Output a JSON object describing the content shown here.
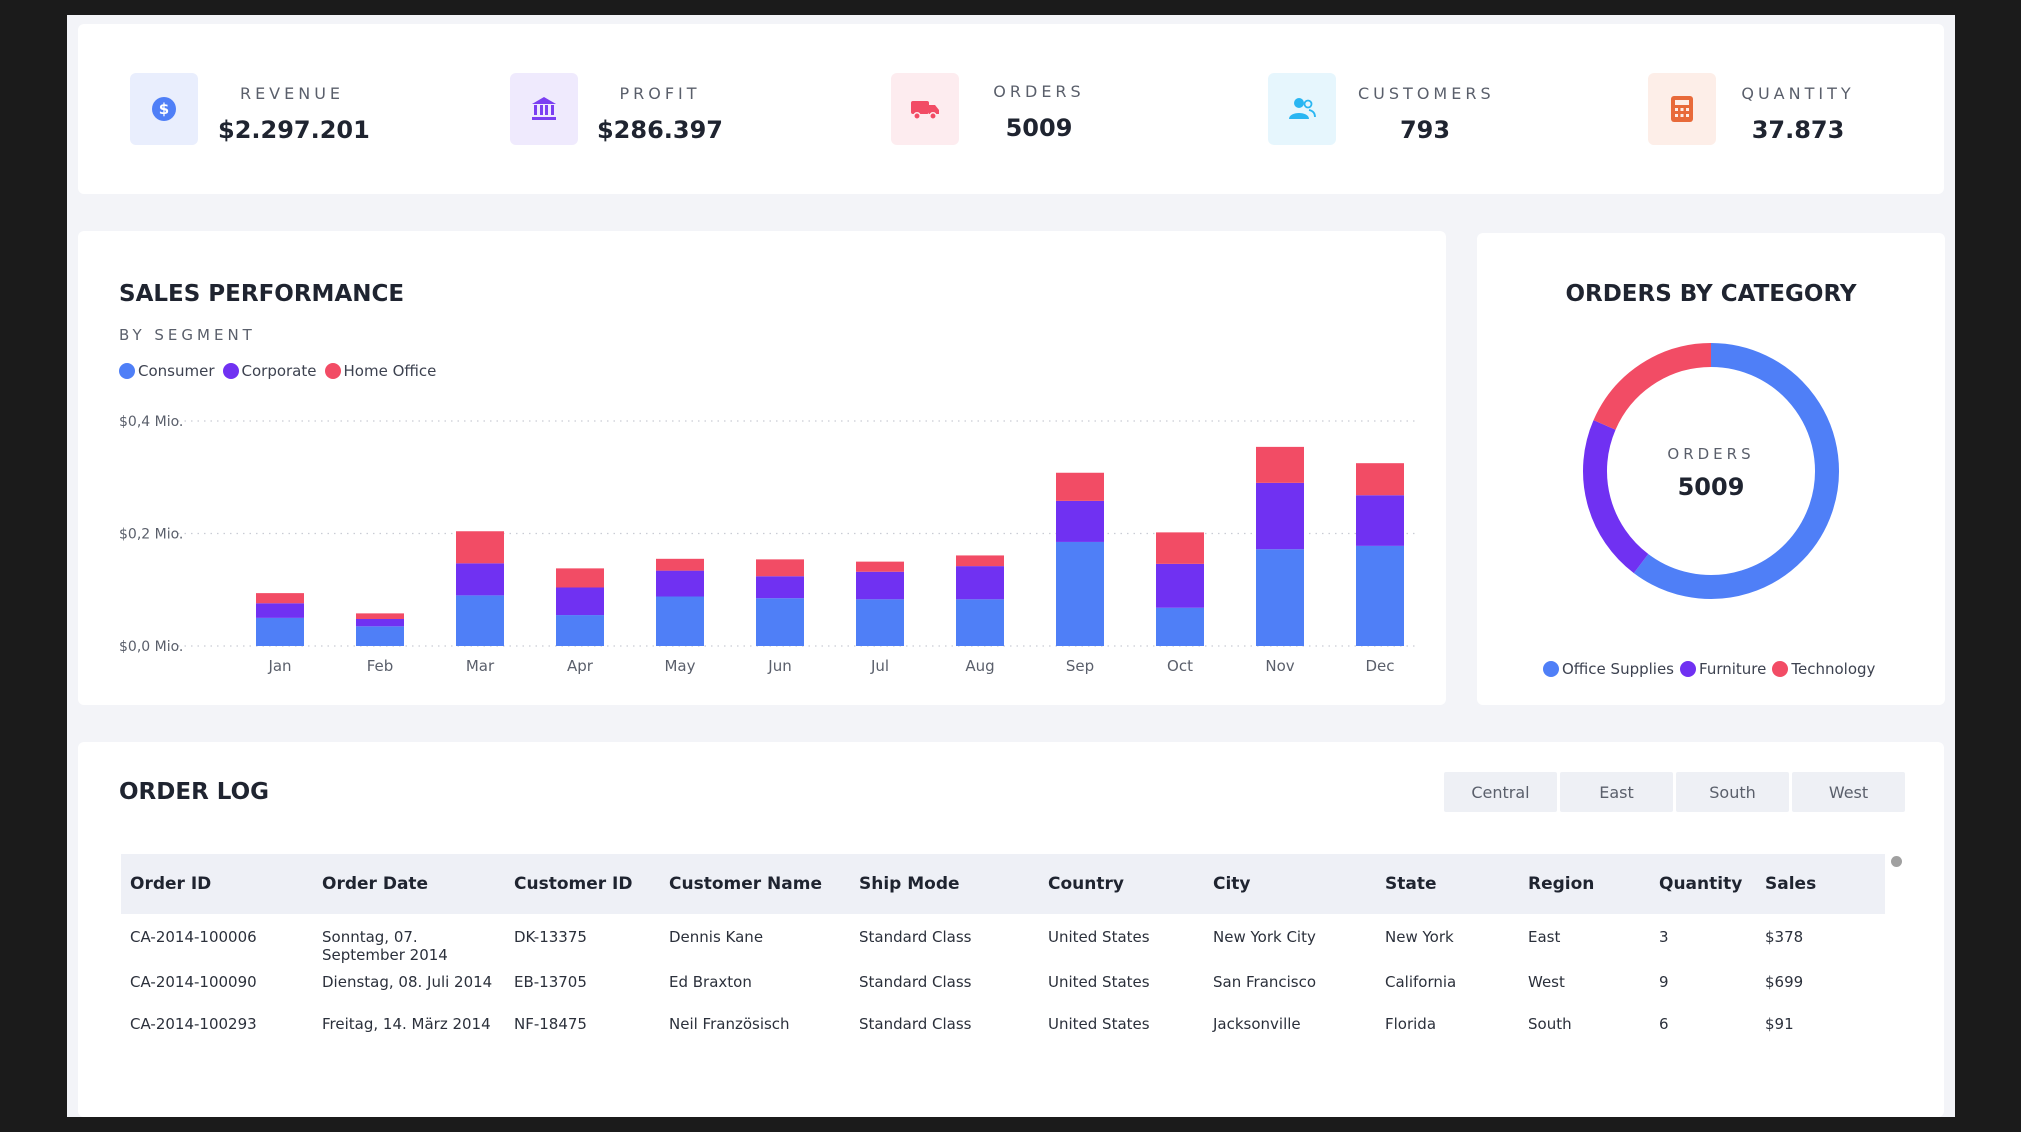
{
  "kpis": [
    {
      "label": "REVENUE",
      "value": "$2.297.201",
      "icon": "dollar-coin-icon",
      "icon_bg": "#e9eefd",
      "icon_color": "#4f7ff7"
    },
    {
      "label": "PROFIT",
      "value": "$286.397",
      "icon": "bank-icon",
      "icon_bg": "#efeafd",
      "icon_color": "#7b3ff2"
    },
    {
      "label": "ORDERS",
      "value": "5009",
      "icon": "truck-icon",
      "icon_bg": "#fdecef",
      "icon_color": "#f24c65"
    },
    {
      "label": "CUSTOMERS",
      "value": "793",
      "icon": "users-icon",
      "icon_bg": "#e6f6fd",
      "icon_color": "#29b6f2"
    },
    {
      "label": "QUANTITY",
      "value": "37.873",
      "icon": "calculator-icon",
      "icon_bg": "#fdeee8",
      "icon_color": "#e86a3a"
    }
  ],
  "sales": {
    "title": "SALES PERFORMANCE",
    "subtitle": "BY SEGMENT"
  },
  "orders_by_category": {
    "title": "ORDERS BY CATEGORY",
    "center_label": "ORDERS",
    "center_value": "5009"
  },
  "chart_data": [
    {
      "type": "bar",
      "stacked": true,
      "categories": [
        "Jan",
        "Feb",
        "Mar",
        "Apr",
        "May",
        "Jun",
        "Jul",
        "Aug",
        "Sep",
        "Oct",
        "Nov",
        "Dec"
      ],
      "series": [
        {
          "name": "Consumer",
          "color": "#4f7ff7",
          "values": [
            0.05,
            0.035,
            0.09,
            0.055,
            0.088,
            0.085,
            0.083,
            0.083,
            0.185,
            0.068,
            0.172,
            0.178
          ]
        },
        {
          "name": "Corporate",
          "color": "#7031f2",
          "values": [
            0.026,
            0.013,
            0.057,
            0.049,
            0.046,
            0.039,
            0.049,
            0.059,
            0.073,
            0.078,
            0.118,
            0.09
          ]
        },
        {
          "name": "Home Office",
          "color": "#f24c65",
          "values": [
            0.018,
            0.01,
            0.057,
            0.034,
            0.021,
            0.03,
            0.018,
            0.019,
            0.05,
            0.056,
            0.064,
            0.057
          ]
        }
      ],
      "yticks": [
        "$0,0 Mio.",
        "$0,2 Mio.",
        "$0,4 Mio."
      ],
      "ylim": [
        0,
        0.4
      ],
      "legend": "top-left",
      "grid": true
    },
    {
      "type": "pie",
      "donut": true,
      "labels": [
        "Office Supplies",
        "Furniture",
        "Technology"
      ],
      "colors": [
        "#4f7ff7",
        "#7031f2",
        "#f24c65"
      ],
      "values": [
        60.3,
        21.2,
        18.5
      ],
      "legend": "bottom"
    }
  ],
  "order_log": {
    "title": "ORDER LOG",
    "region_tabs": [
      "Central",
      "East",
      "South",
      "West"
    ],
    "columns": [
      "Order ID",
      "Order Date",
      "Customer ID",
      "Customer Name",
      "Ship Mode",
      "Country",
      "City",
      "State",
      "Region",
      "Quantity",
      "Sales"
    ],
    "rows": [
      [
        "CA-2014-100006",
        "Sonntag, 07. September 2014",
        "DK-13375",
        "Dennis Kane",
        "Standard Class",
        "United States",
        "New York City",
        "New York",
        "East",
        "3",
        "$378"
      ],
      [
        "CA-2014-100090",
        "Dienstag, 08. Juli 2014",
        "EB-13705",
        "Ed Braxton",
        "Standard Class",
        "United States",
        "San Francisco",
        "California",
        "West",
        "9",
        "$699"
      ],
      [
        "CA-2014-100293",
        "Freitag, 14. März 2014",
        "NF-18475",
        "Neil Französisch",
        "Standard Class",
        "United States",
        "Jacksonville",
        "Florida",
        "South",
        "6",
        "$91"
      ]
    ]
  }
}
